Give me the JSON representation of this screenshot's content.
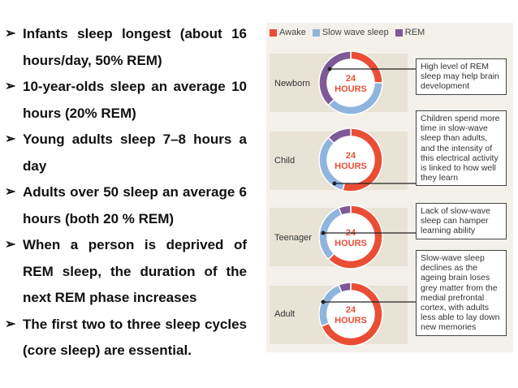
{
  "bullets": [
    "Infants sleep longest (about 16 hours/day, 50% REM)",
    "10-year-olds sleep an average 10 hours (20% REM)",
    "Young adults sleep 7–8 hours a day",
    "Adults over 50 sleep an average 6 hours (both 20 % REM)",
    "When a person is deprived of REM sleep, the duration of the next REM phase increases",
    "The first two to three sleep cycles (core sleep) are essential."
  ],
  "bullet_glyph": "➢",
  "legend": [
    {
      "label": "Awake",
      "color": "#e94e35"
    },
    {
      "label": "Slow wave sleep",
      "color": "#8fb5df"
    },
    {
      "label": "REM",
      "color": "#7d5a97"
    }
  ],
  "donut_center": {
    "number": "24",
    "unit": "HOURS"
  },
  "chart_data": [
    {
      "type": "pie",
      "label": "Newborn",
      "categories": [
        "Awake",
        "Slow wave sleep",
        "REM"
      ],
      "values": [
        6,
        9,
        9
      ]
    },
    {
      "type": "pie",
      "label": "Child",
      "categories": [
        "Awake",
        "Slow wave sleep",
        "REM"
      ],
      "values": [
        13,
        8,
        3
      ]
    },
    {
      "type": "pie",
      "label": "Teenager",
      "categories": [
        "Awake",
        "Slow wave sleep",
        "REM"
      ],
      "values": [
        15,
        7.5,
        1.5
      ]
    },
    {
      "type": "pie",
      "label": "Adult",
      "categories": [
        "Awake",
        "Slow wave sleep",
        "REM"
      ],
      "values": [
        16.5,
        6,
        1.5
      ]
    }
  ],
  "callouts": [
    "High level of REM sleep may help brain development",
    "Children spend more time in slow-wave sleep than adults, and the intensity of this electrical activity is linked to how well they learn",
    "Lack of slow-wave sleep can hamper learning ability",
    "Slow-wave sleep declines as the ageing brain loses grey matter from the medial prefrontal cortex, with adults less able to lay down new memories"
  ]
}
